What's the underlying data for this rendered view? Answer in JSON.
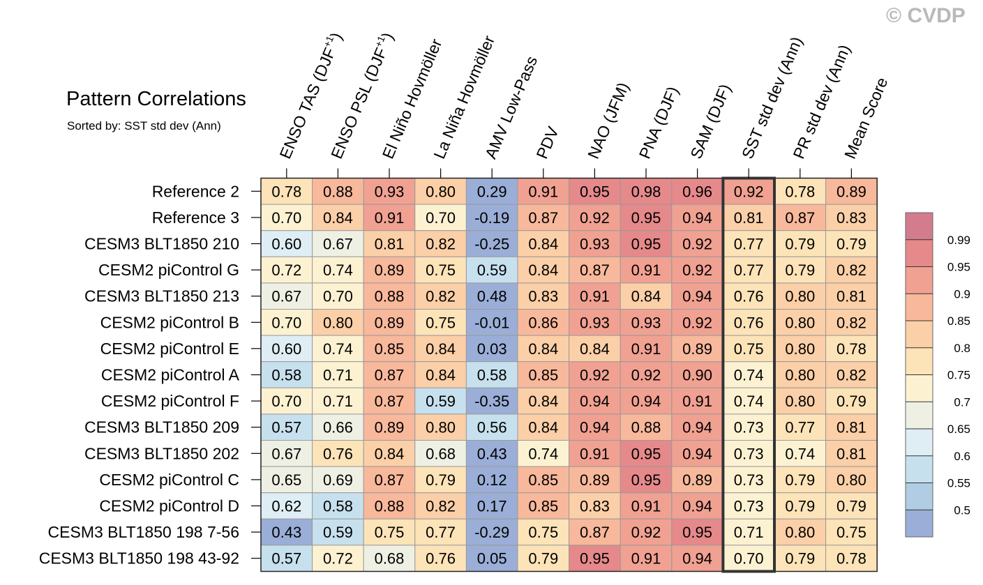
{
  "watermark": "© CVDP",
  "chart_data": {
    "type": "heatmap",
    "title": "Pattern Correlations",
    "subtitle": "Sorted by: SST std dev (Ann)",
    "columns": [
      "ENSO TAS (DJF+1)",
      "ENSO PSL (DJF+1)",
      "El Niño Hovmöller",
      "La Niña Hovmöller",
      "AMV Low-Pass",
      "PDV",
      "NAO (JFM)",
      "PNA (DJF)",
      "SAM (DJF)",
      "SST std dev (Ann)",
      "PR std dev (Ann)",
      "Mean Score"
    ],
    "column_labels": [
      {
        "main": "ENSO TAS (DJF",
        "sup": "+1",
        "tail": ")"
      },
      {
        "main": "ENSO PSL (DJF",
        "sup": "+1",
        "tail": ")"
      },
      {
        "main": "El Niño Hovmöller",
        "sup": "",
        "tail": ""
      },
      {
        "main": "La Niña Hovmöller",
        "sup": "",
        "tail": ""
      },
      {
        "main": "AMV Low-Pass",
        "sup": "",
        "tail": ""
      },
      {
        "main": "PDV",
        "sup": "",
        "tail": ""
      },
      {
        "main": "NAO (JFM)",
        "sup": "",
        "tail": ""
      },
      {
        "main": "PNA (DJF)",
        "sup": "",
        "tail": ""
      },
      {
        "main": "SAM (DJF)",
        "sup": "",
        "tail": ""
      },
      {
        "main": "SST std dev (Ann)",
        "sup": "",
        "tail": ""
      },
      {
        "main": "PR std dev (Ann)",
        "sup": "",
        "tail": ""
      },
      {
        "main": "Mean Score",
        "sup": "",
        "tail": ""
      }
    ],
    "rows": [
      "Reference 2",
      "Reference 3",
      "CESM3 BLT1850 210",
      "CESM2 piControl G",
      "CESM3 BLT1850 213",
      "CESM2 piControl B",
      "CESM2 piControl E",
      "CESM2 piControl A",
      "CESM2 piControl F",
      "CESM3 BLT1850 209",
      "CESM3 BLT1850 202",
      "CESM2 piControl C",
      "CESM2 piControl D",
      "CESM3 BLT1850 198 7-56",
      "CESM3 BLT1850 198 43-92"
    ],
    "values": [
      [
        "0.78",
        "0.88",
        "0.93",
        "0.80",
        "0.29",
        "0.91",
        "0.95",
        "0.98",
        "0.96",
        "0.92",
        "0.78",
        "0.89"
      ],
      [
        "0.70",
        "0.84",
        "0.91",
        "0.70",
        "-0.19",
        "0.87",
        "0.92",
        "0.95",
        "0.94",
        "0.81",
        "0.87",
        "0.83"
      ],
      [
        "0.60",
        "0.67",
        "0.81",
        "0.82",
        "-0.25",
        "0.84",
        "0.93",
        "0.95",
        "0.92",
        "0.77",
        "0.79",
        "0.79"
      ],
      [
        "0.72",
        "0.74",
        "0.89",
        "0.75",
        "0.59",
        "0.84",
        "0.87",
        "0.91",
        "0.92",
        "0.77",
        "0.79",
        "0.82"
      ],
      [
        "0.67",
        "0.70",
        "0.88",
        "0.82",
        "0.48",
        "0.83",
        "0.91",
        "0.84",
        "0.94",
        "0.76",
        "0.80",
        "0.81"
      ],
      [
        "0.70",
        "0.80",
        "0.89",
        "0.75",
        "-0.01",
        "0.86",
        "0.93",
        "0.93",
        "0.92",
        "0.76",
        "0.80",
        "0.82"
      ],
      [
        "0.60",
        "0.74",
        "0.85",
        "0.84",
        "0.03",
        "0.84",
        "0.84",
        "0.91",
        "0.89",
        "0.75",
        "0.80",
        "0.78"
      ],
      [
        "0.58",
        "0.71",
        "0.87",
        "0.84",
        "0.58",
        "0.85",
        "0.92",
        "0.92",
        "0.90",
        "0.74",
        "0.80",
        "0.82"
      ],
      [
        "0.70",
        "0.71",
        "0.87",
        "0.59",
        "-0.35",
        "0.84",
        "0.94",
        "0.94",
        "0.91",
        "0.74",
        "0.80",
        "0.79"
      ],
      [
        "0.57",
        "0.66",
        "0.89",
        "0.80",
        "0.56",
        "0.84",
        "0.94",
        "0.88",
        "0.94",
        "0.73",
        "0.77",
        "0.81"
      ],
      [
        "0.67",
        "0.76",
        "0.84",
        "0.68",
        "0.43",
        "0.74",
        "0.91",
        "0.95",
        "0.94",
        "0.73",
        "0.74",
        "0.81"
      ],
      [
        "0.65",
        "0.69",
        "0.87",
        "0.79",
        "0.12",
        "0.85",
        "0.89",
        "0.95",
        "0.89",
        "0.73",
        "0.79",
        "0.80"
      ],
      [
        "0.62",
        "0.58",
        "0.88",
        "0.82",
        "0.17",
        "0.85",
        "0.83",
        "0.91",
        "0.94",
        "0.73",
        "0.79",
        "0.79"
      ],
      [
        "0.43",
        "0.59",
        "0.75",
        "0.77",
        "-0.29",
        "0.75",
        "0.87",
        "0.92",
        "0.95",
        "0.71",
        "0.80",
        "0.75"
      ],
      [
        "0.57",
        "0.72",
        "0.68",
        "0.76",
        "0.05",
        "0.79",
        "0.95",
        "0.91",
        "0.94",
        "0.70",
        "0.79",
        "0.78"
      ]
    ],
    "highlight_column": "SST std dev (Ann)",
    "colorbar": {
      "levels": [
        "0.99",
        "0.95",
        "0.9",
        "0.85",
        "0.8",
        "0.75",
        "0.7",
        "0.65",
        "0.6",
        "0.55",
        "0.5"
      ],
      "colors": [
        "#d27c8e",
        "#e5898a",
        "#f0a192",
        "#f8b89b",
        "#fbcfa7",
        "#fde3b8",
        "#fcf2d2",
        "#eff0e4",
        "#deeef4",
        "#c7e0ee",
        "#b1cde4",
        "#9aaed7"
      ],
      "thresholds": [
        0.5,
        0.55,
        0.6,
        0.65,
        0.7,
        0.75,
        0.8,
        0.85,
        0.9,
        0.95,
        0.99
      ]
    }
  }
}
